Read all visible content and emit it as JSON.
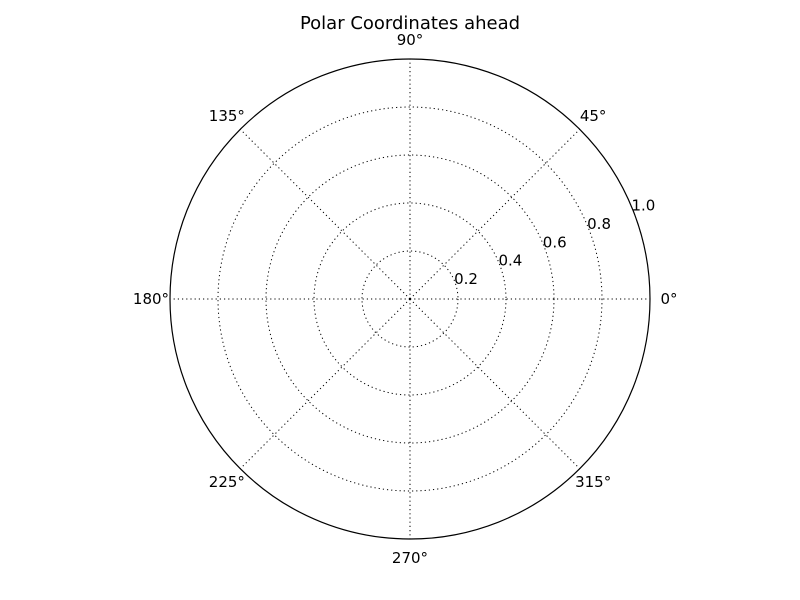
{
  "chart_data": {
    "type": "polar",
    "title": "Polar Coordinates ahead",
    "series": [],
    "angular_axis": {
      "unit": "degrees",
      "ticks": [
        0,
        45,
        90,
        135,
        180,
        225,
        270,
        315
      ],
      "tick_labels": [
        "0°",
        "45°",
        "90°",
        "135°",
        "180°",
        "225°",
        "270°",
        "315°"
      ]
    },
    "radial_axis": {
      "range": [
        0,
        1.0
      ],
      "ticks": [
        0.2,
        0.4,
        0.6,
        0.8,
        1.0
      ],
      "tick_labels": [
        "0.2",
        "0.4",
        "0.6",
        "0.8",
        "1.0"
      ],
      "label_angle_deg": 22.5
    },
    "grid": true,
    "grid_style": "dotted",
    "colors": {
      "grid": "#000000",
      "frame": "#000000",
      "background": "#ffffff"
    }
  }
}
